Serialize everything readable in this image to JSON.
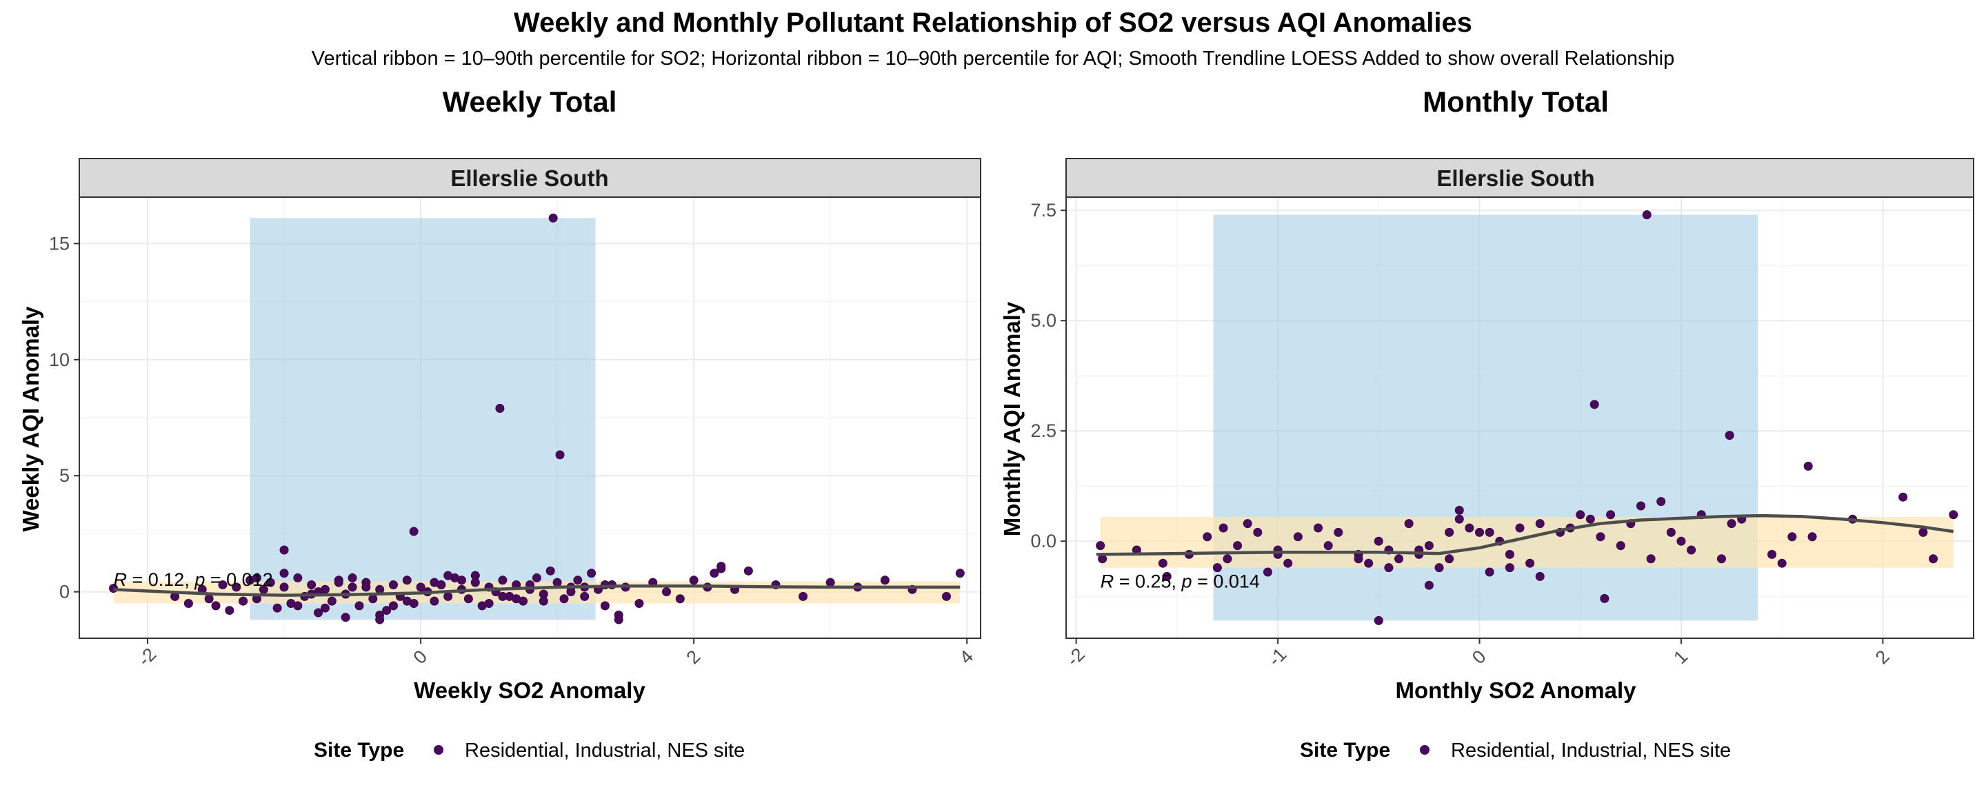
{
  "header": {
    "title": "Weekly and Monthly Pollutant Relationship of SO2 versus AQI Anomalies",
    "subtitle": "Vertical ribbon = 10–90th percentile for SO2; Horizontal ribbon = 10–90th percentile for AQI; Smooth Trendline LOESS Added to show overall Relationship"
  },
  "colors": {
    "point": "#4a0a5c",
    "point_stroke": "#3a0548",
    "ribbon_x": "#9ecae1",
    "ribbon_y": "#fde5b0",
    "trend": "#4d4d4d",
    "strip_bg": "#d9d9d9",
    "grid": "#ebebeb",
    "border": "#333333"
  },
  "chart_data": [
    {
      "id": "weekly",
      "type": "scatter",
      "panel_title": "Weekly Total",
      "facet": "Ellerslie South",
      "xlabel": "Weekly SO2 Anomaly",
      "ylabel": "Weekly AQI Anomaly",
      "xlim": [
        -2.5,
        4.1
      ],
      "ylim": [
        -2.0,
        17.0
      ],
      "xticks": [
        -2,
        0,
        2,
        4
      ],
      "yticks": [
        0,
        5,
        10,
        15
      ],
      "x_ribbon": [
        -1.25,
        1.28
      ],
      "y_ribbon": [
        -0.5,
        0.45
      ],
      "annotation": {
        "r_label": "R",
        "r_text": " = 0.12, ",
        "p_label": "p",
        "p_text": " = 0.012",
        "x": -2.25,
        "y": 0.25
      },
      "trend": {
        "x": [
          -2.25,
          -1.5,
          -1.0,
          -0.5,
          0.0,
          0.5,
          1.0,
          1.5,
          2.0,
          2.5,
          3.0,
          3.5,
          3.95
        ],
        "y": [
          0.1,
          -0.1,
          -0.15,
          -0.12,
          -0.05,
          0.1,
          0.2,
          0.25,
          0.25,
          0.22,
          0.2,
          0.2,
          0.2
        ]
      },
      "points": {
        "x": [
          -2.25,
          -1.8,
          -1.7,
          -1.6,
          -1.5,
          -1.45,
          -1.4,
          -1.35,
          -1.3,
          -1.25,
          -1.2,
          -1.15,
          -1.1,
          -1.05,
          -1.0,
          -0.95,
          -0.9,
          -0.85,
          -0.8,
          -0.75,
          -0.7,
          -0.65,
          -0.6,
          -0.55,
          -0.5,
          -0.45,
          -0.4,
          -0.35,
          -0.3,
          -0.25,
          -0.2,
          -0.15,
          -0.1,
          -0.05,
          0.0,
          0.05,
          0.1,
          0.15,
          0.2,
          0.25,
          0.3,
          0.35,
          0.4,
          0.45,
          0.5,
          0.55,
          0.6,
          0.65,
          0.7,
          0.75,
          0.8,
          0.85,
          0.9,
          0.95,
          1.0,
          1.05,
          1.1,
          1.15,
          1.2,
          1.25,
          1.3,
          1.35,
          1.4,
          1.45,
          1.5,
          1.6,
          1.7,
          1.8,
          1.9,
          2.0,
          2.1,
          2.2,
          2.3,
          2.4,
          2.6,
          2.8,
          3.0,
          3.2,
          3.4,
          3.6,
          3.85,
          3.95,
          -1.55,
          -1.2,
          -0.9,
          -0.6,
          -0.3,
          0.2,
          0.5,
          0.8,
          -1.0,
          -0.7,
          -0.4,
          -0.1,
          0.3,
          0.6,
          1.1,
          -0.8,
          -0.5,
          -0.2,
          0.1,
          0.4,
          0.9,
          1.35,
          1.45,
          2.15,
          2.2,
          -1.0,
          -0.05,
          0.58,
          0.97,
          1.02,
          -0.55,
          -0.3,
          -0.75,
          0.15,
          0.7,
          1.2
        ],
        "y": [
          0.15,
          -0.2,
          -0.5,
          0.1,
          -0.6,
          0.3,
          -0.8,
          0.2,
          -0.4,
          0.5,
          -0.3,
          0.1,
          0.4,
          -0.7,
          0.2,
          -0.5,
          0.6,
          -0.2,
          0.3,
          -0.9,
          0.1,
          -0.4,
          0.5,
          -0.1,
          0.2,
          -0.6,
          0.4,
          -0.3,
          0.1,
          -0.8,
          0.3,
          -0.2,
          0.5,
          -0.5,
          0.2,
          0.0,
          -0.4,
          0.3,
          -0.2,
          0.6,
          0.1,
          -0.3,
          0.4,
          -0.6,
          0.2,
          0.0,
          0.5,
          -0.2,
          0.3,
          -0.4,
          0.1,
          0.6,
          -0.1,
          0.9,
          0.4,
          -0.3,
          0.2,
          0.5,
          -0.2,
          0.8,
          0.1,
          -0.6,
          0.3,
          -1.0,
          0.2,
          -0.5,
          0.4,
          0.0,
          -0.3,
          0.5,
          0.2,
          1.0,
          0.1,
          0.9,
          0.3,
          -0.2,
          0.4,
          0.2,
          0.5,
          0.1,
          -0.2,
          0.8,
          -0.3,
          0.6,
          -0.6,
          0.4,
          -1.0,
          0.7,
          -0.5,
          0.3,
          0.8,
          -0.7,
          0.2,
          -0.4,
          0.5,
          -0.2,
          0.0,
          -0.1,
          0.6,
          -0.6,
          0.4,
          0.7,
          -0.4,
          0.3,
          -1.2,
          0.8,
          1.1,
          1.8,
          2.6,
          7.9,
          16.1,
          5.9,
          -1.1,
          -1.2,
          0.0,
          0.3,
          -0.3,
          0.2
        ]
      }
    },
    {
      "id": "monthly",
      "type": "scatter",
      "panel_title": "Monthly Total",
      "facet": "Ellerslie South",
      "xlabel": "Monthly SO2 Anomaly",
      "ylabel": "Monthly AQI Anomaly",
      "xlim": [
        -2.05,
        2.45
      ],
      "ylim": [
        -2.2,
        7.8
      ],
      "xticks": [
        -2,
        -1,
        0,
        1,
        2
      ],
      "yticks": [
        0.0,
        2.5,
        5.0,
        7.5
      ],
      "ytick_labels": [
        "0.0",
        "2.5",
        "5.0",
        "7.5"
      ],
      "x_ribbon": [
        -1.32,
        1.38
      ],
      "y_ribbon": [
        -0.6,
        0.55
      ],
      "annotation": {
        "r_label": "R",
        "r_text": " = 0.25, ",
        "p_label": "p",
        "p_text": " = 0.014",
        "x": -1.88,
        "y": -1.05
      },
      "trend": {
        "x": [
          -1.9,
          -1.5,
          -1.0,
          -0.5,
          -0.2,
          0.0,
          0.2,
          0.4,
          0.6,
          0.8,
          1.0,
          1.2,
          1.4,
          1.6,
          1.8,
          2.0,
          2.2,
          2.35
        ],
        "y": [
          -0.3,
          -0.28,
          -0.25,
          -0.25,
          -0.28,
          -0.15,
          0.05,
          0.25,
          0.4,
          0.48,
          0.52,
          0.56,
          0.58,
          0.56,
          0.5,
          0.42,
          0.32,
          0.22
        ]
      },
      "points": {
        "x": [
          -1.88,
          -1.87,
          -1.7,
          -1.57,
          -1.44,
          -1.35,
          -1.3,
          -1.27,
          -1.25,
          -1.2,
          -1.1,
          -1.05,
          -1.0,
          -0.95,
          -0.9,
          -0.8,
          -0.75,
          -0.7,
          -0.6,
          -0.55,
          -0.5,
          -0.45,
          -0.4,
          -0.35,
          -0.3,
          -0.25,
          -0.2,
          -0.15,
          -0.1,
          -0.05,
          0.0,
          0.05,
          0.1,
          0.15,
          0.2,
          0.25,
          0.3,
          0.4,
          0.5,
          0.55,
          0.6,
          0.7,
          0.75,
          0.85,
          0.9,
          1.0,
          1.05,
          1.1,
          1.2,
          1.25,
          1.3,
          1.45,
          1.5,
          1.65,
          1.85,
          2.1,
          2.2,
          2.25,
          2.35,
          -1.15,
          -1.0,
          -0.6,
          -0.3,
          -0.1,
          0.15,
          0.3,
          0.45,
          0.8,
          0.95,
          -0.45,
          -0.25,
          0.05,
          0.65,
          1.55,
          -0.5,
          -1.55,
          0.57,
          0.83,
          1.24,
          1.63,
          0.62,
          -0.15
        ],
        "y": [
          -0.1,
          -0.4,
          -0.2,
          -0.5,
          -0.3,
          0.1,
          -0.6,
          0.3,
          -0.4,
          -0.1,
          0.2,
          -0.7,
          -0.2,
          -0.5,
          0.1,
          0.3,
          -0.1,
          0.2,
          -0.3,
          -0.5,
          0.0,
          -0.2,
          -0.4,
          0.4,
          -0.3,
          -0.1,
          -0.6,
          0.2,
          0.5,
          0.3,
          0.2,
          -0.7,
          0.0,
          -0.3,
          0.3,
          -0.5,
          0.4,
          0.2,
          0.6,
          0.5,
          0.1,
          -0.1,
          0.4,
          -0.4,
          0.9,
          0.0,
          -0.2,
          0.6,
          -0.4,
          0.4,
          0.5,
          -0.3,
          -0.5,
          0.1,
          0.5,
          1.0,
          0.2,
          -0.4,
          0.6,
          0.4,
          -0.3,
          -0.4,
          -0.2,
          0.7,
          -0.6,
          -0.8,
          0.3,
          0.8,
          0.2,
          -0.6,
          -1.0,
          0.2,
          0.6,
          0.1,
          -1.8,
          -0.8,
          3.1,
          7.4,
          2.4,
          1.7,
          -1.3,
          -0.4
        ]
      }
    }
  ],
  "legend": {
    "title": "Site Type",
    "label": "Residential, Industrial, NES site"
  }
}
